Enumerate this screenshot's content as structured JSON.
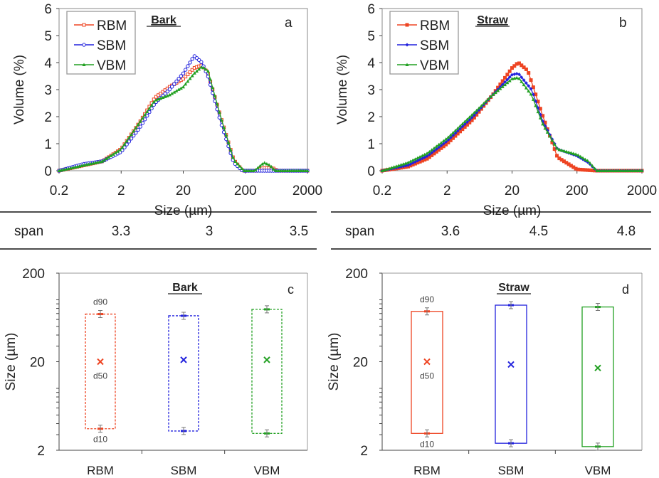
{
  "colors": {
    "RBM": "#ee4422",
    "SBM": "#2222dd",
    "VBM": "#22a022"
  },
  "chart_data": [
    {
      "type": "line",
      "panel": "a",
      "title": "Bark",
      "xlabel": "Size (µm)",
      "ylabel": "Volume (%)",
      "xscale": "log",
      "xlim": [
        0.2,
        2000
      ],
      "ylim": [
        0,
        6
      ],
      "xticks": [
        "0.2",
        "2",
        "20",
        "200",
        "2000"
      ],
      "yticks": [
        "0",
        "1",
        "2",
        "3",
        "4",
        "5",
        "6"
      ],
      "legend": "top-left",
      "series": [
        {
          "name": "RBM",
          "marker": "open-square",
          "points": [
            [
              0.2,
              0
            ],
            [
              0.5,
              0.2
            ],
            [
              1,
              0.35
            ],
            [
              2,
              0.8
            ],
            [
              4,
              1.8
            ],
            [
              7,
              2.7
            ],
            [
              12,
              3.1
            ],
            [
              20,
              3.4
            ],
            [
              30,
              3.8
            ],
            [
              40,
              3.9
            ],
            [
              50,
              3.6
            ],
            [
              80,
              2.0
            ],
            [
              130,
              0.4
            ],
            [
              180,
              0
            ],
            [
              300,
              0
            ],
            [
              380,
              0.1
            ],
            [
              550,
              0.1
            ],
            [
              650,
              0
            ],
            [
              2000,
              0
            ]
          ]
        },
        {
          "name": "SBM",
          "marker": "open-circle",
          "points": [
            [
              0.2,
              0
            ],
            [
              0.5,
              0.25
            ],
            [
              1,
              0.35
            ],
            [
              2,
              0.7
            ],
            [
              4,
              1.6
            ],
            [
              7,
              2.5
            ],
            [
              12,
              3.0
            ],
            [
              20,
              3.6
            ],
            [
              30,
              4.25
            ],
            [
              40,
              4.0
            ],
            [
              50,
              3.5
            ],
            [
              80,
              1.8
            ],
            [
              130,
              0.3
            ],
            [
              180,
              0
            ],
            [
              2000,
              0
            ]
          ]
        },
        {
          "name": "VBM",
          "marker": "triangle",
          "points": [
            [
              0.2,
              0
            ],
            [
              0.5,
              0.2
            ],
            [
              1,
              0.35
            ],
            [
              2,
              0.8
            ],
            [
              4,
              1.8
            ],
            [
              7,
              2.6
            ],
            [
              12,
              2.8
            ],
            [
              20,
              3.1
            ],
            [
              30,
              3.6
            ],
            [
              40,
              3.85
            ],
            [
              50,
              3.7
            ],
            [
              80,
              2.0
            ],
            [
              130,
              0.4
            ],
            [
              190,
              0
            ],
            [
              280,
              0
            ],
            [
              400,
              0.3
            ],
            [
              500,
              0.2
            ],
            [
              600,
              0
            ],
            [
              2000,
              0
            ]
          ]
        }
      ]
    },
    {
      "type": "line",
      "panel": "b",
      "title": "Straw",
      "xlabel": "Size (µm)",
      "ylabel": "Volume (%)",
      "xscale": "log",
      "xlim": [
        0.2,
        2000
      ],
      "ylim": [
        0,
        6
      ],
      "xticks": [
        "0.2",
        "2",
        "20",
        "200",
        "2000"
      ],
      "yticks": [
        "0",
        "1",
        "2",
        "3",
        "4",
        "5",
        "6"
      ],
      "legend": "top-left",
      "series": [
        {
          "name": "RBM",
          "marker": "square",
          "points": [
            [
              0.2,
              0
            ],
            [
              0.5,
              0.15
            ],
            [
              1,
              0.45
            ],
            [
              2,
              1.0
            ],
            [
              5,
              1.9
            ],
            [
              10,
              2.8
            ],
            [
              20,
              3.8
            ],
            [
              25,
              4.0
            ],
            [
              35,
              3.7
            ],
            [
              60,
              2.0
            ],
            [
              100,
              0.5
            ],
            [
              200,
              0.05
            ],
            [
              400,
              0
            ],
            [
              2000,
              0
            ]
          ]
        },
        {
          "name": "SBM",
          "marker": "diamond",
          "points": [
            [
              0.2,
              0
            ],
            [
              0.5,
              0.2
            ],
            [
              1,
              0.55
            ],
            [
              2,
              1.1
            ],
            [
              5,
              2.0
            ],
            [
              10,
              2.8
            ],
            [
              20,
              3.55
            ],
            [
              25,
              3.6
            ],
            [
              40,
              3.0
            ],
            [
              60,
              1.8
            ],
            [
              100,
              0.8
            ],
            [
              200,
              0.55
            ],
            [
              300,
              0.3
            ],
            [
              400,
              0
            ],
            [
              2000,
              0
            ]
          ]
        },
        {
          "name": "VBM",
          "marker": "triangle",
          "points": [
            [
              0.2,
              0
            ],
            [
              0.5,
              0.3
            ],
            [
              1,
              0.65
            ],
            [
              2,
              1.2
            ],
            [
              5,
              2.1
            ],
            [
              10,
              2.8
            ],
            [
              20,
              3.4
            ],
            [
              25,
              3.45
            ],
            [
              40,
              2.8
            ],
            [
              60,
              1.7
            ],
            [
              100,
              0.8
            ],
            [
              200,
              0.6
            ],
            [
              300,
              0.35
            ],
            [
              400,
              0
            ],
            [
              2000,
              0
            ]
          ]
        }
      ]
    },
    {
      "type": "box",
      "panel": "c",
      "title": "Bark",
      "ylabel": "Size (µm)",
      "yscale": "log",
      "ylim": [
        2,
        200
      ],
      "yticks": [
        "2",
        "20",
        "200"
      ],
      "categories": [
        "RBM",
        "SBM",
        "VBM"
      ],
      "box_style": "dashed",
      "annotations": [
        "d90",
        "d50",
        "d10"
      ],
      "d10": [
        3.5,
        3.3,
        3.1
      ],
      "d50": [
        20,
        21,
        21
      ],
      "d90": [
        69,
        66,
        78
      ]
    },
    {
      "type": "box",
      "panel": "d",
      "title": "Straw",
      "ylabel": "Size (µm)",
      "yscale": "log",
      "ylim": [
        2,
        200
      ],
      "yticks": [
        "2",
        "20",
        "200"
      ],
      "categories": [
        "RBM",
        "SBM",
        "VBM"
      ],
      "box_style": "solid",
      "annotations": [
        "d90",
        "d50",
        "d10"
      ],
      "d10": [
        3.1,
        2.4,
        2.2
      ],
      "d50": [
        20,
        18.6,
        17
      ],
      "d90": [
        74,
        87,
        83
      ]
    }
  ],
  "span_tables": [
    {
      "label": "span",
      "values": [
        "3.3",
        "3",
        "3.5"
      ]
    },
    {
      "label": "span",
      "values": [
        "3.6",
        "4.5",
        "4.8"
      ]
    }
  ]
}
